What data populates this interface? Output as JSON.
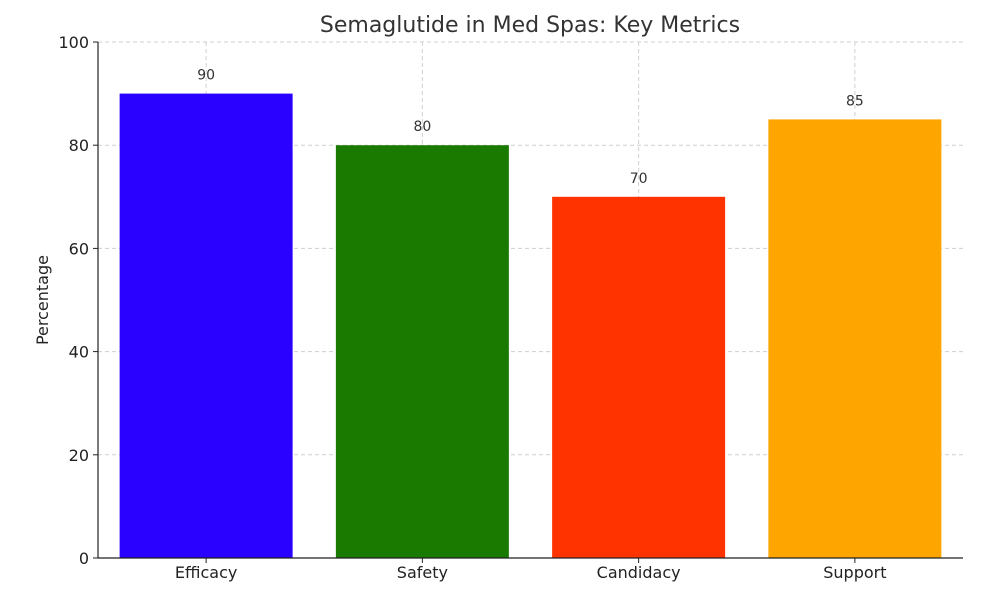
{
  "chart_data": {
    "type": "bar",
    "title": "Semaglutide in Med Spas: Key Metrics",
    "xlabel": "",
    "ylabel": "Percentage",
    "categories": [
      "Efficacy",
      "Safety",
      "Candidacy",
      "Support"
    ],
    "values": [
      90,
      80,
      70,
      85
    ],
    "data_labels": [
      "90",
      "80",
      "70",
      "85"
    ],
    "colors": [
      "#2a00ff",
      "#1a7a00",
      "#ff3300",
      "#ffa500"
    ],
    "ylim": [
      0,
      100
    ],
    "yticks": [
      0,
      20,
      40,
      60,
      80,
      100
    ],
    "ytick_labels": [
      "0",
      "20",
      "40",
      "60",
      "80",
      "100"
    ],
    "grid": true
  }
}
